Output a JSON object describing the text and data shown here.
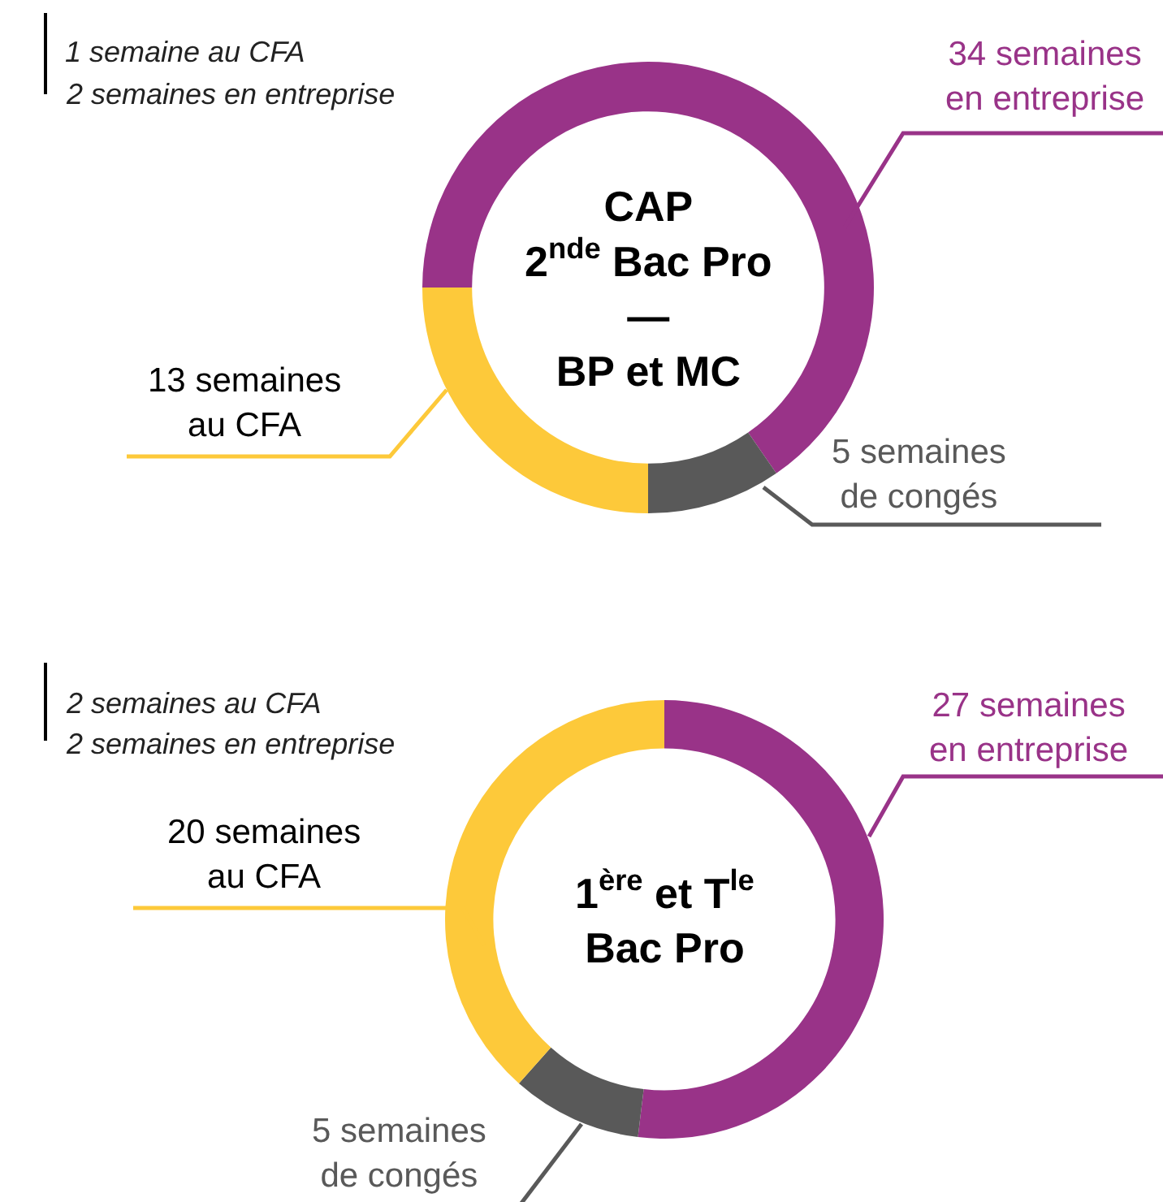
{
  "chart_data": [
    {
      "type": "donut",
      "title": "CAP\n2$^{nde}$ Bac Pro\n—\nBP et MC",
      "categories": [
        "34 semaines en entreprise",
        "5 semaines de congés",
        "13 semaines au CFA"
      ],
      "values": [
        34,
        5,
        13
      ],
      "colors": [
        "#993388",
        "#595959",
        "#fdc93a"
      ],
      "annotations": [
        "1 semaine au CFA",
        "2 semaines en entreprise"
      ]
    },
    {
      "type": "donut",
      "title": "1$^{ère}$ et T$^{le}$\nBac Pro",
      "categories": [
        "27 semaines en entreprise",
        "5 semaines de congés",
        "20 semaines au CFA"
      ],
      "values": [
        27,
        5,
        20
      ],
      "colors": [
        "#993388",
        "#595959",
        "#fdc93a"
      ],
      "annotations": [
        "2 semaines au CFA",
        "2 semaines en entreprise"
      ]
    }
  ]
}
